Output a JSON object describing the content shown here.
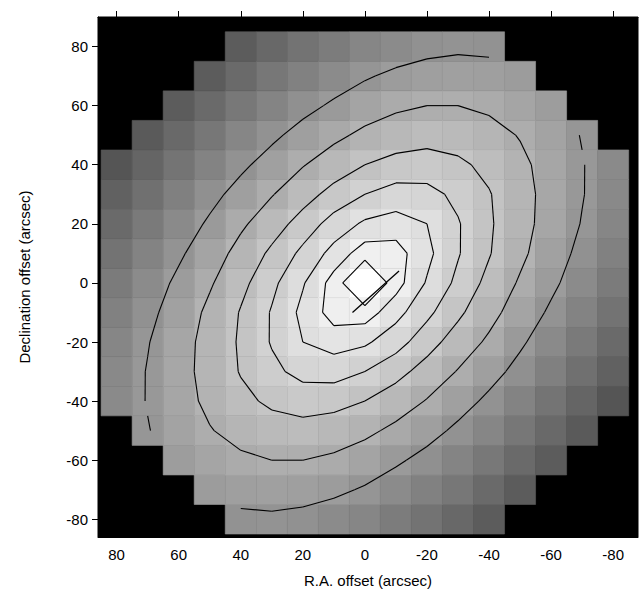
{
  "chart_data": {
    "type": "contour",
    "x_label": "R.A. offset (arcsec)",
    "y_label": "Declination offset (arcsec)",
    "xlim": [
      86,
      -88
    ],
    "ylim": [
      -86,
      90
    ],
    "xticks": [
      80,
      60,
      40,
      20,
      0,
      -20,
      -40,
      -60,
      -80
    ],
    "yticks": [
      -80,
      -60,
      -40,
      -20,
      0,
      20,
      40,
      60,
      80
    ],
    "x": [
      80,
      70,
      60,
      50,
      40,
      30,
      20,
      10,
      0,
      -10,
      -20,
      -30,
      -40,
      -50,
      -60,
      -70,
      -80
    ],
    "y": [
      -80,
      -70,
      -60,
      -50,
      -40,
      -30,
      -20,
      -10,
      0,
      10,
      20,
      30,
      40,
      50,
      60,
      70,
      80
    ],
    "z": [
      [
        null,
        null,
        null,
        null,
        6,
        7,
        5,
        0,
        -5,
        -13,
        -21,
        -31,
        -41,
        null,
        null,
        null,
        null
      ],
      [
        null,
        null,
        null,
        14,
        17,
        18,
        17,
        14,
        8,
        0,
        -9,
        -18,
        -29,
        -41,
        null,
        null,
        null
      ],
      [
        null,
        null,
        15,
        22,
        27,
        30,
        30,
        27,
        21,
        13,
        4,
        -6,
        -17,
        -29,
        -41,
        null,
        null
      ],
      [
        null,
        9,
        20,
        29,
        36,
        40,
        42,
        39,
        34,
        26,
        17,
        6,
        -5,
        -18,
        -30,
        -43,
        null
      ],
      [
        -1,
        11,
        23,
        34,
        43,
        50,
        53,
        52,
        47,
        39,
        29,
        18,
        6,
        -7,
        -20,
        -33,
        -47
      ],
      [
        -2,
        11,
        24,
        36,
        48,
        57,
        64,
        65,
        60,
        52,
        41,
        29,
        17,
        4,
        -10,
        -24,
        -37
      ],
      [
        -5,
        9,
        23,
        36,
        49,
        61,
        72,
        77,
        74,
        65,
        53,
        40,
        27,
        13,
        -1,
        -15,
        -29
      ],
      [
        -9,
        5,
        19,
        34,
        48,
        61,
        75,
        86,
        87,
        76,
        63,
        50,
        36,
        21,
        7,
        -7,
        -21
      ],
      [
        -14,
        0,
        14,
        28,
        43,
        57,
        71,
        86,
        100,
        86,
        71,
        57,
        43,
        28,
        14,
        0,
        -14
      ],
      [
        -21,
        -7,
        7,
        21,
        36,
        50,
        63,
        76,
        87,
        86,
        75,
        61,
        48,
        34,
        19,
        5,
        -9
      ],
      [
        -29,
        -15,
        -1,
        13,
        27,
        40,
        53,
        65,
        74,
        77,
        72,
        61,
        49,
        36,
        23,
        9,
        -5
      ],
      [
        -37,
        -24,
        -10,
        4,
        17,
        29,
        41,
        52,
        60,
        65,
        64,
        57,
        48,
        36,
        24,
        11,
        -2
      ],
      [
        -47,
        -33,
        -20,
        -7,
        6,
        18,
        29,
        39,
        47,
        52,
        53,
        50,
        43,
        34,
        23,
        11,
        -1
      ],
      [
        null,
        -43,
        -30,
        -18,
        -5,
        6,
        17,
        26,
        34,
        39,
        42,
        40,
        36,
        29,
        20,
        9,
        null
      ],
      [
        null,
        null,
        -41,
        -29,
        -17,
        -6,
        4,
        13,
        21,
        27,
        30,
        30,
        27,
        22,
        15,
        null,
        null
      ],
      [
        null,
        null,
        null,
        -41,
        -29,
        -18,
        -9,
        0,
        8,
        14,
        17,
        18,
        17,
        14,
        null,
        null,
        null
      ],
      [
        null,
        null,
        null,
        null,
        -41,
        -31,
        -21,
        -13,
        -5,
        0,
        5,
        7,
        6,
        null,
        null,
        null,
        null
      ]
    ],
    "zlim": [
      -60,
      100
    ],
    "contour_levels": [
      10,
      30,
      47,
      60,
      72,
      82,
      90
    ],
    "line": {
      "x": [
        4,
        -11
      ],
      "y": [
        -10,
        4
      ]
    }
  }
}
